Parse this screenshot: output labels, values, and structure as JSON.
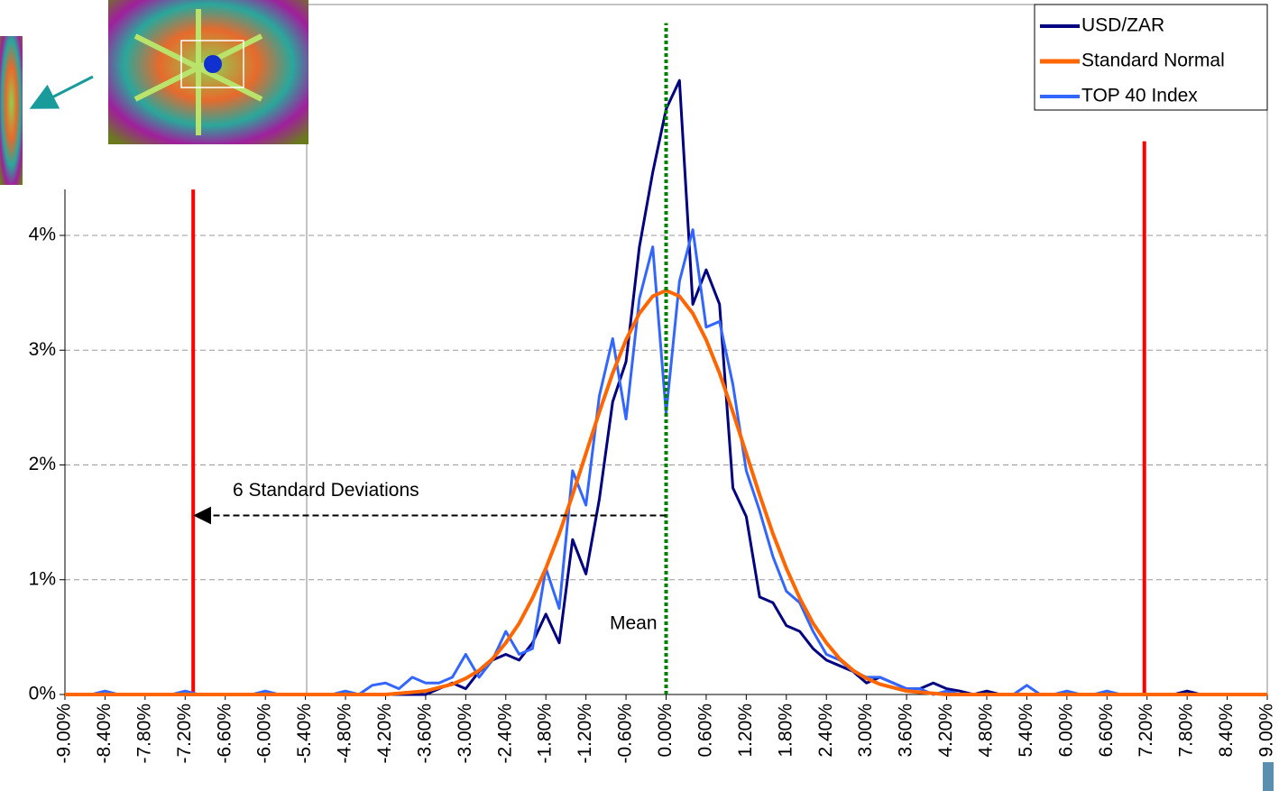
{
  "chart_data": {
    "type": "line",
    "x": [
      -9,
      -8.8,
      -8.6,
      -8.4,
      -8.2,
      -8,
      -7.8,
      -7.6,
      -7.4,
      -7.2,
      -7,
      -6.8,
      -6.6,
      -6.4,
      -6.2,
      -6,
      -5.8,
      -5.6,
      -5.4,
      -5.2,
      -5,
      -4.8,
      -4.6,
      -4.4,
      -4.2,
      -4,
      -3.8,
      -3.6,
      -3.4,
      -3.2,
      -3,
      -2.8,
      -2.6,
      -2.4,
      -2.2,
      -2,
      -1.8,
      -1.6,
      -1.4,
      -1.2,
      -1,
      -0.8,
      -0.6,
      -0.4,
      -0.2,
      0,
      0.2,
      0.4,
      0.6,
      0.8,
      1,
      1.2,
      1.4,
      1.6,
      1.8,
      2,
      2.2,
      2.4,
      2.6,
      2.8,
      3,
      3.2,
      3.4,
      3.6,
      3.8,
      4,
      4.2,
      4.4,
      4.6,
      4.8,
      5,
      5.2,
      5.4,
      5.6,
      5.8,
      6,
      6.2,
      6.4,
      6.6,
      6.8,
      7,
      7.2,
      7.4,
      7.6,
      7.8,
      8,
      8.2,
      8.4,
      8.6,
      8.8,
      9
    ],
    "series": [
      {
        "name": "USD/ZAR",
        "color": "#000080",
        "width": 3,
        "values": [
          0,
          0,
          0,
          0,
          0,
          0,
          0,
          0,
          0,
          0,
          0,
          0,
          0,
          0,
          0,
          0,
          0,
          0,
          0,
          0,
          0,
          0,
          0,
          0,
          0,
          0,
          0,
          0,
          0.05,
          0.1,
          0.05,
          0.2,
          0.3,
          0.35,
          0.3,
          0.45,
          0.7,
          0.45,
          1.35,
          1.05,
          1.7,
          2.55,
          2.9,
          3.9,
          4.55,
          5.1,
          5.35,
          3.4,
          3.7,
          3.4,
          1.8,
          1.55,
          0.85,
          0.8,
          0.6,
          0.55,
          0.4,
          0.3,
          0.25,
          0.2,
          0.1,
          0.15,
          0.1,
          0.05,
          0.05,
          0.1,
          0.05,
          0.03,
          0,
          0.03,
          0,
          0,
          0,
          0,
          0,
          0,
          0,
          0,
          0,
          0,
          0,
          0,
          0,
          0,
          0.03,
          0,
          0,
          0,
          0,
          0,
          0
        ]
      },
      {
        "name": "Standard Normal",
        "color": "#ff6600",
        "width": 4,
        "values": [
          0,
          0,
          0,
          0,
          0,
          0,
          0,
          0,
          0,
          0,
          0,
          0,
          0,
          0,
          0,
          0,
          0,
          0,
          0,
          0,
          0,
          0,
          0,
          0,
          0,
          0.01,
          0.02,
          0.03,
          0.06,
          0.09,
          0.14,
          0.21,
          0.31,
          0.45,
          0.62,
          0.84,
          1.1,
          1.4,
          1.74,
          2.1,
          2.46,
          2.8,
          3.09,
          3.32,
          3.47,
          3.52,
          3.47,
          3.32,
          3.09,
          2.8,
          2.46,
          2.1,
          1.74,
          1.4,
          1.1,
          0.84,
          0.62,
          0.45,
          0.31,
          0.21,
          0.14,
          0.09,
          0.06,
          0.03,
          0.02,
          0.01,
          0,
          0,
          0,
          0,
          0,
          0,
          0,
          0,
          0,
          0,
          0,
          0,
          0,
          0,
          0,
          0,
          0,
          0,
          0,
          0,
          0,
          0,
          0,
          0,
          0
        ]
      },
      {
        "name": "TOP 40 Index",
        "color": "#3366ff",
        "width": 3,
        "values": [
          0,
          0,
          0,
          0.03,
          0,
          0,
          0,
          0,
          0,
          0.03,
          0,
          0,
          0,
          0,
          0,
          0.03,
          0,
          0,
          0,
          0,
          0,
          0.03,
          0,
          0.08,
          0.1,
          0.05,
          0.15,
          0.1,
          0.1,
          0.15,
          0.35,
          0.15,
          0.3,
          0.55,
          0.35,
          0.4,
          1.1,
          0.75,
          1.95,
          1.65,
          2.6,
          3.1,
          2.4,
          3.45,
          3.9,
          2.45,
          3.6,
          4.05,
          3.2,
          3.25,
          2.7,
          1.95,
          1.6,
          1.2,
          0.9,
          0.8,
          0.55,
          0.35,
          0.3,
          0.2,
          0.15,
          0.15,
          0.1,
          0.05,
          0.05,
          0,
          0.03,
          0,
          0,
          0,
          0,
          0,
          0.08,
          0,
          0,
          0.03,
          0,
          0,
          0.03,
          0,
          0,
          0,
          0,
          0,
          0,
          0,
          0,
          0,
          0,
          0,
          0
        ]
      }
    ],
    "xlim": [
      -9,
      9
    ],
    "ylim": [
      0,
      6
    ],
    "xticks": [
      {
        "value": -9,
        "label": "-9.00%"
      },
      {
        "value": -8.4,
        "label": "-8.40%"
      },
      {
        "value": -7.8,
        "label": "-7.80%"
      },
      {
        "value": -7.2,
        "label": "-7.20%"
      },
      {
        "value": -6.6,
        "label": "-6.60%"
      },
      {
        "value": -6,
        "label": "-6.00%"
      },
      {
        "value": -5.4,
        "label": "-5.40%"
      },
      {
        "value": -4.8,
        "label": "-4.80%"
      },
      {
        "value": -4.2,
        "label": "-4.20%"
      },
      {
        "value": -3.6,
        "label": "-3.60%"
      },
      {
        "value": -3,
        "label": "-3.00%"
      },
      {
        "value": -2.4,
        "label": "-2.40%"
      },
      {
        "value": -1.8,
        "label": "-1.80%"
      },
      {
        "value": -1.2,
        "label": "-1.20%"
      },
      {
        "value": -0.6,
        "label": "-0.60%"
      },
      {
        "value": 0,
        "label": "0.00%"
      },
      {
        "value": 0.6,
        "label": "0.60%"
      },
      {
        "value": 1.2,
        "label": "1.20%"
      },
      {
        "value": 1.8,
        "label": "1.80%"
      },
      {
        "value": 2.4,
        "label": "2.40%"
      },
      {
        "value": 3,
        "label": "3.00%"
      },
      {
        "value": 3.6,
        "label": "3.60%"
      },
      {
        "value": 4.2,
        "label": "4.20%"
      },
      {
        "value": 4.8,
        "label": "4.80%"
      },
      {
        "value": 5.4,
        "label": "5.40%"
      },
      {
        "value": 6,
        "label": "6.00%"
      },
      {
        "value": 6.6,
        "label": "6.60%"
      },
      {
        "value": 7.2,
        "label": "7.20%"
      },
      {
        "value": 7.8,
        "label": "7.80%"
      },
      {
        "value": 8.4,
        "label": "8.40%"
      },
      {
        "value": 9,
        "label": "9.00%"
      }
    ],
    "yticks": [
      {
        "value": 0,
        "label": "0%"
      },
      {
        "value": 1,
        "label": "1%"
      },
      {
        "value": 2,
        "label": "2%"
      },
      {
        "value": 3,
        "label": "3%"
      },
      {
        "value": 4,
        "label": "4%"
      }
    ],
    "grid": true,
    "legend": "top-right",
    "annotations": {
      "mean": {
        "label": "Mean",
        "x": 0,
        "top": 5.85,
        "color": "#008000"
      },
      "sd_arrow": {
        "label": "6 Standard Deviations",
        "y": 1.56,
        "from": 0,
        "to": -7.08
      },
      "sd_lines": [
        {
          "x": -7.08,
          "top": 4.4,
          "color": "#ff0000"
        },
        {
          "x": 7.16,
          "top": 4.82,
          "color": "#ff0000"
        }
      ]
    }
  }
}
